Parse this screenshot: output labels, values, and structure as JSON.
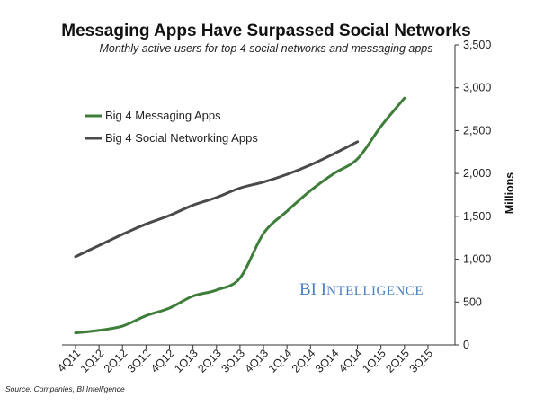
{
  "chart_data": {
    "type": "line",
    "title": "Messaging Apps Have Surpassed Social Networks",
    "subtitle": "Monthly active users for top 4 social networks and messaging apps",
    "ylabel": "Millions",
    "xlabel": "",
    "ylim": [
      0,
      3500
    ],
    "yticks": [
      "0",
      "500",
      "1,000",
      "1,500",
      "2,000",
      "2,500",
      "3,000",
      "3,500"
    ],
    "ytick_values": [
      0,
      500,
      1000,
      1500,
      2000,
      2500,
      3000,
      3500
    ],
    "categories": [
      "4Q11",
      "1Q12",
      "2Q12",
      "3Q12",
      "4Q12",
      "1Q13",
      "2Q13",
      "3Q13",
      "4Q13",
      "1Q14",
      "2Q14",
      "3Q14",
      "4Q14",
      "1Q15",
      "2Q15",
      "3Q15"
    ],
    "grid": false,
    "legend_position": "top-left",
    "y_axis_side": "right",
    "series": [
      {
        "name": "Big 4 Messaging Apps",
        "color": "#3e7d3a",
        "values": [
          140,
          170,
          220,
          340,
          430,
          570,
          640,
          780,
          1300,
          1560,
          1800,
          2000,
          2170,
          2550,
          2880,
          null
        ]
      },
      {
        "name": "Big 4 Social Networking Apps",
        "color": "#4a4a4a",
        "values": [
          1030,
          1160,
          1290,
          1410,
          1510,
          1630,
          1720,
          1830,
          1900,
          1990,
          2100,
          2230,
          2370,
          null,
          null,
          null
        ]
      }
    ],
    "watermark": {
      "line1_big": "BI I",
      "line1_rest": "NTELLIGENCE"
    },
    "source": "Source: Companies, BI Intelligence"
  }
}
